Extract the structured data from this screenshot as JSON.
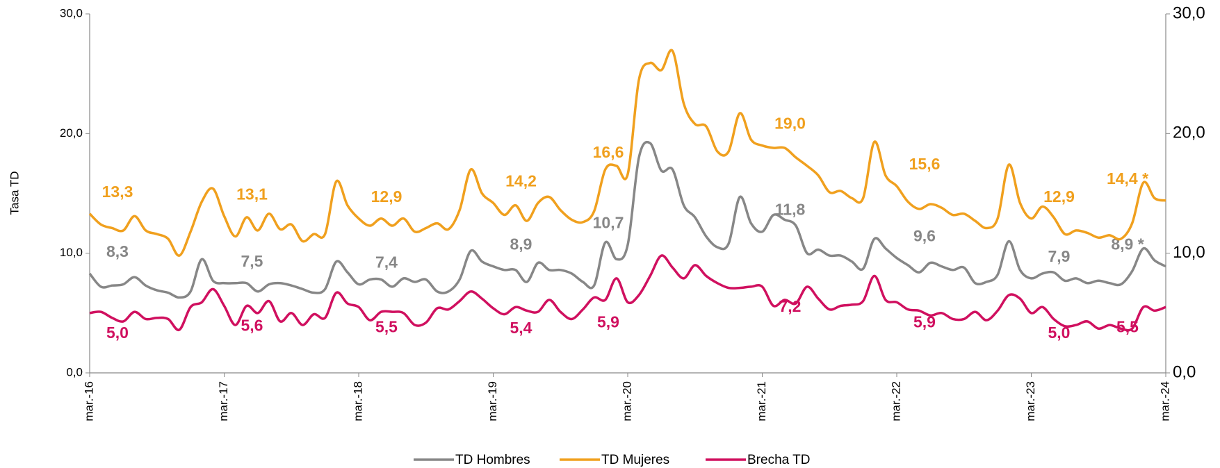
{
  "chart_data": {
    "type": "line",
    "ylabel": "Tasa TD",
    "categories": [
      "mar.-16",
      null,
      null,
      null,
      null,
      null,
      null,
      null,
      null,
      null,
      null,
      null,
      "mar.-17",
      null,
      null,
      null,
      null,
      null,
      null,
      null,
      null,
      null,
      null,
      null,
      "mar.-18",
      null,
      null,
      null,
      null,
      null,
      null,
      null,
      null,
      null,
      null,
      null,
      "mar.-19",
      null,
      null,
      null,
      null,
      null,
      null,
      null,
      null,
      null,
      null,
      null,
      "mar.-20",
      null,
      null,
      null,
      null,
      null,
      null,
      null,
      null,
      null,
      null,
      null,
      "mar.-21",
      null,
      null,
      null,
      null,
      null,
      null,
      null,
      null,
      null,
      null,
      null,
      "mar.-22",
      null,
      null,
      null,
      null,
      null,
      null,
      null,
      null,
      null,
      null,
      null,
      "mar.-23",
      null,
      null,
      null,
      null,
      null,
      null,
      null,
      null,
      null,
      null,
      null,
      "mar.-24"
    ],
    "ylim": [
      0,
      30
    ],
    "yticks": [
      {
        "value": 0,
        "label": "0,0"
      },
      {
        "value": 10,
        "label": "10,0"
      },
      {
        "value": 20,
        "label": "20,0"
      },
      {
        "value": 30,
        "label": "30,0"
      }
    ],
    "y2lim": [
      0,
      30
    ],
    "y2ticks": [
      {
        "value": 0,
        "label": "0,0"
      },
      {
        "value": 10,
        "label": "10,0"
      },
      {
        "value": 20,
        "label": "20,0"
      },
      {
        "value": 30,
        "label": "30,0"
      }
    ],
    "legend": "bottom",
    "series": [
      {
        "name": "TD Hombres",
        "color": "#878787",
        "values": [
          8.3,
          7.2,
          7.3,
          7.4,
          8.0,
          7.3,
          6.9,
          6.7,
          6.3,
          6.8,
          9.5,
          7.7,
          7.5,
          7.5,
          7.5,
          6.8,
          7.4,
          7.5,
          7.3,
          7.0,
          6.7,
          7.0,
          9.3,
          8.4,
          7.4,
          7.8,
          7.8,
          7.2,
          7.9,
          7.6,
          7.8,
          6.8,
          6.8,
          7.8,
          10.2,
          9.3,
          8.9,
          8.6,
          8.6,
          7.6,
          9.2,
          8.6,
          8.6,
          8.3,
          7.6,
          7.3,
          10.9,
          9.5,
          10.7,
          18.0,
          19.2,
          16.9,
          17.0,
          14.0,
          13.0,
          11.4,
          10.5,
          10.8,
          14.7,
          12.5,
          11.8,
          13.2,
          12.8,
          12.3,
          10.0,
          10.3,
          9.8,
          9.8,
          9.3,
          8.7,
          11.2,
          10.4,
          9.6,
          9.0,
          8.4,
          9.2,
          8.9,
          8.6,
          8.8,
          7.5,
          7.6,
          8.2,
          11.0,
          8.6,
          7.9,
          8.3,
          8.4,
          7.7,
          7.9,
          7.5,
          7.7,
          7.5,
          7.4,
          8.5,
          10.4,
          9.4,
          8.9
        ],
        "value_labels": [
          "8,3",
          null,
          null,
          null,
          null,
          null,
          null,
          null,
          null,
          null,
          null,
          null,
          "7,5",
          null,
          null,
          null,
          null,
          null,
          null,
          null,
          null,
          null,
          null,
          null,
          "7,4",
          null,
          null,
          null,
          null,
          null,
          null,
          null,
          null,
          null,
          null,
          null,
          "8,9",
          null,
          null,
          null,
          null,
          null,
          null,
          null,
          null,
          null,
          null,
          null,
          "10,7",
          null,
          null,
          null,
          null,
          null,
          null,
          null,
          null,
          null,
          null,
          null,
          "11,8",
          null,
          null,
          null,
          null,
          null,
          null,
          null,
          null,
          null,
          null,
          null,
          "9,6",
          null,
          null,
          null,
          null,
          null,
          null,
          null,
          null,
          null,
          null,
          null,
          "7,9",
          null,
          null,
          null,
          null,
          null,
          null,
          null,
          null,
          null,
          null,
          null,
          "8,9 *"
        ]
      },
      {
        "name": "TD Mujeres",
        "color": "#f0a01e",
        "values": [
          13.3,
          12.4,
          12.1,
          11.9,
          13.1,
          11.9,
          11.6,
          11.2,
          9.8,
          11.8,
          14.3,
          15.4,
          13.1,
          11.4,
          13.0,
          11.9,
          13.3,
          12.0,
          12.4,
          11.0,
          11.6,
          11.6,
          16.0,
          14.0,
          12.9,
          12.3,
          12.9,
          12.3,
          12.9,
          11.8,
          12.1,
          12.5,
          12.0,
          13.6,
          17.0,
          15.0,
          14.2,
          13.2,
          14.0,
          12.7,
          14.2,
          14.7,
          13.6,
          12.8,
          12.6,
          13.5,
          17.0,
          17.3,
          16.6,
          24.5,
          25.9,
          25.3,
          26.9,
          22.5,
          20.8,
          20.6,
          18.5,
          18.5,
          21.7,
          19.5,
          19.0,
          18.8,
          18.8,
          18.0,
          17.3,
          16.5,
          15.1,
          15.2,
          14.6,
          14.6,
          19.3,
          16.5,
          15.6,
          14.3,
          13.7,
          14.1,
          13.8,
          13.2,
          13.3,
          12.7,
          12.1,
          12.9,
          17.4,
          14.2,
          12.9,
          13.9,
          13.0,
          11.6,
          11.9,
          11.7,
          11.3,
          11.5,
          11.2,
          12.5,
          15.9,
          14.6,
          14.4
        ],
        "value_labels": [
          "13,3",
          null,
          null,
          null,
          null,
          null,
          null,
          null,
          null,
          null,
          null,
          null,
          "13,1",
          null,
          null,
          null,
          null,
          null,
          null,
          null,
          null,
          null,
          null,
          null,
          "12,9",
          null,
          null,
          null,
          null,
          null,
          null,
          null,
          null,
          null,
          null,
          null,
          "14,2",
          null,
          null,
          null,
          null,
          null,
          null,
          null,
          null,
          null,
          null,
          null,
          "16,6",
          null,
          null,
          null,
          null,
          null,
          null,
          null,
          null,
          null,
          null,
          null,
          "19,0",
          null,
          null,
          null,
          null,
          null,
          null,
          null,
          null,
          null,
          null,
          null,
          "15,6",
          null,
          null,
          null,
          null,
          null,
          null,
          null,
          null,
          null,
          null,
          null,
          "12,9",
          null,
          null,
          null,
          null,
          null,
          null,
          null,
          null,
          null,
          null,
          null,
          "14,4 *"
        ]
      },
      {
        "name": "Brecha TD",
        "color": "#d0105f",
        "axis": "y2",
        "values": [
          5.0,
          5.1,
          4.6,
          4.3,
          5.1,
          4.5,
          4.6,
          4.5,
          3.6,
          5.5,
          5.9,
          7.0,
          5.6,
          4.0,
          5.6,
          5.0,
          6.0,
          4.3,
          5.0,
          4.0,
          4.9,
          4.6,
          6.7,
          5.8,
          5.5,
          4.4,
          5.1,
          5.1,
          5.0,
          4.0,
          4.2,
          5.4,
          5.3,
          6.0,
          6.8,
          6.2,
          5.4,
          4.9,
          5.5,
          5.2,
          5.1,
          6.1,
          5.1,
          4.5,
          5.3,
          6.3,
          6.1,
          7.9,
          5.9,
          6.5,
          8.1,
          9.8,
          8.8,
          7.9,
          9.0,
          8.1,
          7.5,
          7.1,
          7.1,
          7.2,
          7.2,
          5.6,
          6.1,
          5.8,
          7.2,
          6.2,
          5.3,
          5.6,
          5.7,
          6.0,
          8.1,
          6.1,
          5.9,
          5.3,
          5.2,
          4.8,
          5.0,
          4.5,
          4.5,
          5.1,
          4.4,
          5.2,
          6.5,
          6.2,
          5.0,
          5.5,
          4.5,
          3.9,
          4.0,
          4.3,
          3.7,
          4.0,
          3.7,
          3.7,
          5.5,
          5.2,
          5.5
        ],
        "value_labels": [
          "5,0",
          null,
          null,
          null,
          null,
          null,
          null,
          null,
          null,
          null,
          null,
          null,
          "5,6",
          null,
          null,
          null,
          null,
          null,
          null,
          null,
          null,
          null,
          null,
          null,
          "5,5",
          null,
          null,
          null,
          null,
          null,
          null,
          null,
          null,
          null,
          null,
          null,
          "5,4",
          null,
          null,
          null,
          null,
          null,
          null,
          null,
          null,
          null,
          null,
          null,
          "5,9",
          null,
          null,
          null,
          null,
          null,
          null,
          null,
          null,
          null,
          null,
          null,
          "7,2",
          null,
          null,
          null,
          null,
          null,
          null,
          null,
          null,
          null,
          null,
          null,
          "5,9",
          null,
          null,
          null,
          null,
          null,
          null,
          null,
          null,
          null,
          null,
          null,
          "5,0",
          null,
          null,
          null,
          null,
          null,
          null,
          null,
          null,
          null,
          null,
          null,
          "5,5"
        ]
      }
    ]
  }
}
